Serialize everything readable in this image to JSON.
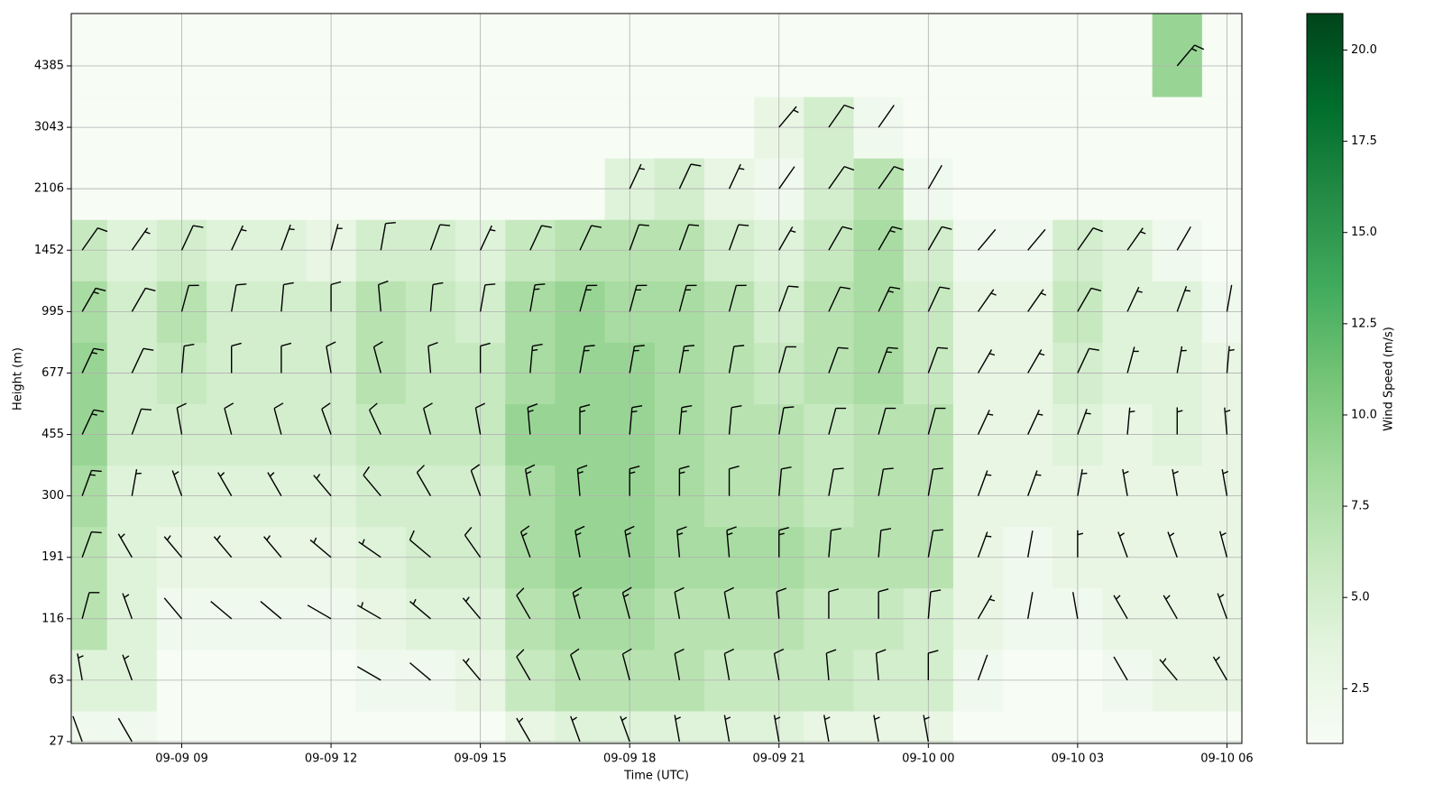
{
  "chart_data": {
    "type": "heatmap",
    "xlabel": "Time (UTC)",
    "ylabel": "Height (m)",
    "colorbar_label": "Wind Speed (m/s)",
    "x": [
      7,
      8,
      9,
      10,
      11,
      12,
      13,
      14,
      15,
      16,
      17,
      18,
      19,
      20,
      21,
      22,
      23,
      24,
      25,
      26,
      27,
      28,
      29,
      30
    ],
    "y": [
      27,
      63,
      116,
      191,
      300,
      455,
      677,
      995,
      1452,
      2106,
      3043,
      4385
    ],
    "xlim": [
      6.78,
      30.3
    ],
    "xticks": [
      {
        "value": 9,
        "label": "09-09 09"
      },
      {
        "value": 12,
        "label": "09-09 12"
      },
      {
        "value": 15,
        "label": "09-09 15"
      },
      {
        "value": 18,
        "label": "09-09 18"
      },
      {
        "value": 21,
        "label": "09-09 21"
      },
      {
        "value": 24,
        "label": "09-10 00"
      },
      {
        "value": 27,
        "label": "09-10 03"
      },
      {
        "value": 30,
        "label": "09-10 06"
      }
    ],
    "yticks": [
      27,
      63,
      116,
      191,
      300,
      455,
      677,
      995,
      1452,
      2106,
      3043,
      4385
    ],
    "grid": true,
    "colormap": [
      "#f7fcf5",
      "#e5f5e0",
      "#c7e9c0",
      "#a1d99b",
      "#74c476",
      "#41ab5d",
      "#238b45",
      "#006d2c",
      "#00441b"
    ],
    "clim": [
      1,
      21
    ],
    "cticks": [
      {
        "value": 2.5,
        "label": "2.5"
      },
      {
        "value": 5,
        "label": "5.0"
      },
      {
        "value": 7.5,
        "label": "7.5"
      },
      {
        "value": 10,
        "label": "10.0"
      },
      {
        "value": 12.5,
        "label": "12.5"
      },
      {
        "value": 15,
        "label": "15.0"
      },
      {
        "value": 17.5,
        "label": "17.5"
      },
      {
        "value": 20,
        "label": "20.0"
      }
    ],
    "speed": [
      [
        2,
        2,
        1,
        1,
        1,
        1,
        1,
        1,
        1,
        3,
        4,
        4,
        4,
        4,
        4,
        3,
        3,
        3,
        1,
        1,
        1,
        1,
        1,
        1
      ],
      [
        4,
        4,
        1,
        1,
        1,
        1,
        2,
        2,
        3,
        6,
        7,
        7,
        7,
        6,
        6,
        6,
        5,
        5,
        2,
        1,
        1,
        2,
        3,
        3
      ],
      [
        7,
        4,
        2,
        2,
        2,
        2,
        3,
        4,
        4,
        7,
        8,
        8,
        7,
        7,
        7,
        6,
        6,
        5,
        3,
        2,
        2,
        3,
        3,
        3
      ],
      [
        7,
        4,
        3,
        3,
        3,
        3,
        4,
        5,
        5,
        8,
        9,
        9,
        8,
        8,
        8,
        7,
        7,
        7,
        3,
        2,
        3,
        3,
        3,
        3
      ],
      [
        8,
        4,
        4,
        4,
        4,
        4,
        5,
        5,
        5,
        8,
        9,
        9,
        8,
        7,
        7,
        6,
        7,
        7,
        3,
        3,
        3,
        3,
        3,
        3
      ],
      [
        9,
        5,
        5,
        5,
        5,
        5,
        6,
        6,
        6,
        9,
        9,
        9,
        8,
        7,
        7,
        6,
        7,
        7,
        3,
        3,
        4,
        3,
        4,
        3
      ],
      [
        9,
        5,
        6,
        5,
        5,
        5,
        7,
        6,
        6,
        8,
        9,
        9,
        8,
        7,
        6,
        7,
        8,
        6,
        3,
        3,
        5,
        4,
        4,
        3
      ],
      [
        8,
        5,
        7,
        5,
        5,
        5,
        7,
        6,
        5,
        8,
        9,
        8,
        8,
        7,
        5,
        7,
        8,
        6,
        3,
        3,
        6,
        4,
        4,
        2
      ],
      [
        6,
        4,
        5,
        4,
        4,
        3,
        5,
        5,
        4,
        6,
        7,
        7,
        7,
        5,
        4,
        6,
        8,
        5,
        2,
        2,
        5,
        4,
        2,
        1
      ],
      [
        1,
        1,
        1,
        1,
        1,
        1,
        1,
        1,
        1,
        1,
        1,
        4,
        5,
        3,
        2,
        5,
        7,
        2,
        1,
        1,
        1,
        1,
        1,
        1
      ],
      [
        1,
        1,
        1,
        1,
        1,
        1,
        1,
        1,
        1,
        1,
        1,
        1,
        1,
        1,
        3,
        5,
        2,
        1,
        1,
        1,
        1,
        1,
        1,
        1
      ],
      [
        1,
        1,
        1,
        1,
        1,
        1,
        1,
        1,
        1,
        1,
        1,
        1,
        1,
        1,
        1,
        1,
        1,
        1,
        1,
        1,
        1,
        1,
        9,
        1
      ]
    ],
    "direction": [
      [
        340,
        330,
        330,
        330,
        320,
        300,
        300,
        310,
        320,
        330,
        340,
        340,
        350,
        350,
        350,
        350,
        350,
        350,
        30,
        30,
        20,
        20,
        20,
        330
      ],
      [
        350,
        340,
        320,
        310,
        300,
        300,
        300,
        310,
        320,
        330,
        340,
        345,
        350,
        350,
        350,
        355,
        355,
        0,
        20,
        30,
        20,
        330,
        320,
        330
      ],
      [
        15,
        340,
        320,
        310,
        310,
        300,
        300,
        310,
        320,
        330,
        345,
        345,
        350,
        350,
        355,
        0,
        0,
        5,
        30,
        10,
        350,
        330,
        330,
        340
      ],
      [
        20,
        330,
        320,
        320,
        320,
        310,
        305,
        310,
        325,
        340,
        350,
        350,
        355,
        355,
        0,
        5,
        5,
        10,
        20,
        10,
        0,
        340,
        340,
        345
      ],
      [
        20,
        10,
        340,
        330,
        330,
        320,
        320,
        330,
        340,
        350,
        355,
        0,
        0,
        0,
        5,
        10,
        10,
        10,
        20,
        20,
        10,
        350,
        350,
        350
      ],
      [
        25,
        20,
        350,
        345,
        345,
        340,
        335,
        345,
        350,
        355,
        0,
        5,
        5,
        5,
        10,
        15,
        15,
        15,
        25,
        25,
        20,
        5,
        0,
        355
      ],
      [
        25,
        25,
        5,
        0,
        0,
        350,
        345,
        355,
        0,
        5,
        10,
        10,
        10,
        10,
        15,
        20,
        20,
        20,
        30,
        30,
        25,
        15,
        10,
        5
      ],
      [
        30,
        30,
        15,
        10,
        5,
        0,
        355,
        5,
        10,
        10,
        15,
        15,
        15,
        15,
        20,
        25,
        25,
        25,
        35,
        35,
        30,
        25,
        20,
        10
      ],
      [
        35,
        35,
        25,
        25,
        20,
        15,
        10,
        20,
        25,
        25,
        25,
        20,
        20,
        20,
        30,
        30,
        30,
        30,
        40,
        40,
        35,
        35,
        30,
        20
      ],
      [
        40,
        40,
        30,
        30,
        30,
        30,
        20,
        40,
        30,
        30,
        30,
        25,
        25,
        25,
        35,
        35,
        35,
        30,
        40,
        40,
        40,
        40,
        35,
        30
      ],
      [
        40,
        40,
        40,
        40,
        30,
        30,
        30,
        40,
        40,
        40,
        40,
        30,
        30,
        30,
        40,
        35,
        35,
        35,
        40,
        40,
        40,
        40,
        40,
        40
      ],
      [
        40,
        30,
        30,
        30,
        30,
        30,
        30,
        30,
        30,
        30,
        30,
        30,
        30,
        30,
        30,
        30,
        30,
        30,
        30,
        30,
        30,
        30,
        40,
        30
      ]
    ]
  }
}
